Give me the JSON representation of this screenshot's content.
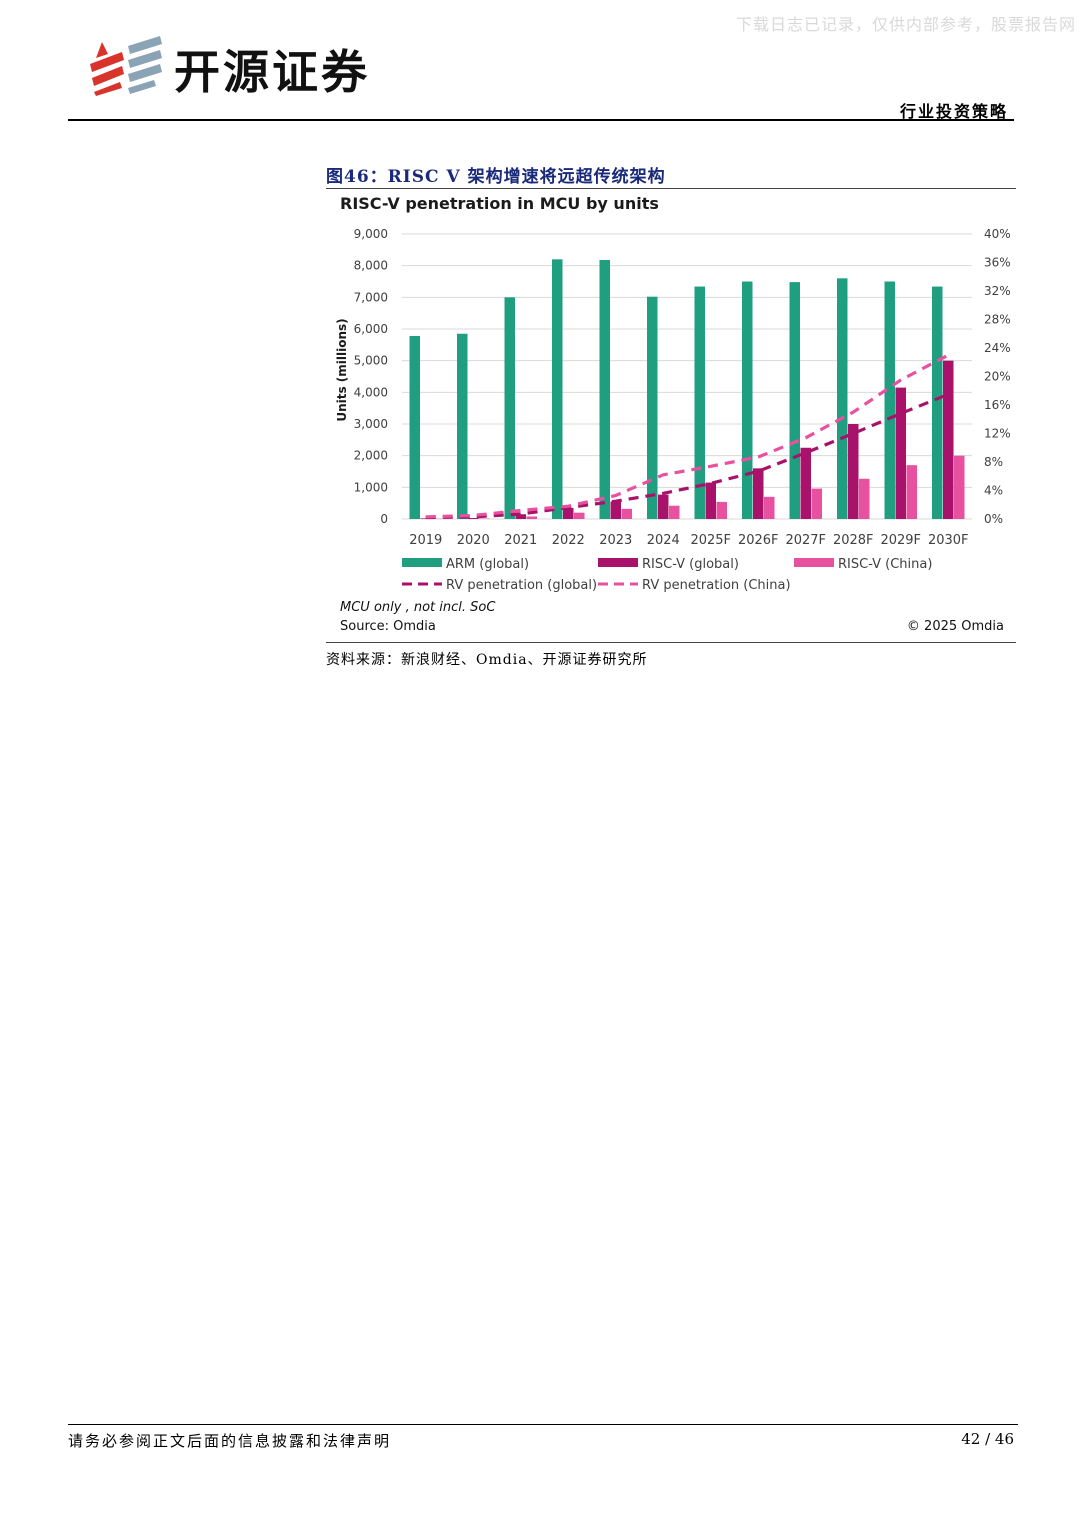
{
  "header": {
    "watermark": "下载日志已记录，仅供内部参考，股票报告网",
    "brand": "开源证券",
    "section": "行业投资策略"
  },
  "figure": {
    "label": "图46：RISC V 架构增速将远超传统架构",
    "source": "资料来源：新浪财经、Omdia、开源证券研究所",
    "notes": {
      "scope": "MCU only , not incl. SoC",
      "source": "Source: Omdia",
      "copyright": "© 2025 Omdia"
    }
  },
  "chart_data": {
    "type": "bar",
    "title": "RISC-V penetration in MCU by units",
    "xlabel": "",
    "ylabel": "Units (millions)",
    "categories": [
      "2019",
      "2020",
      "2021",
      "2022",
      "2023",
      "2024",
      "2025F",
      "2026F",
      "2027F",
      "2028F",
      "2029F",
      "2030F"
    ],
    "ylim": [
      0,
      9000
    ],
    "y_ticks": [
      "9,000",
      "8,000",
      "7,000",
      "6,000",
      "5,000",
      "4,000",
      "3,000",
      "2,000",
      "1,000",
      "0"
    ],
    "y2lim": [
      0,
      40
    ],
    "y2_ticks": [
      "40%",
      "36%",
      "32%",
      "28%",
      "24%",
      "20%",
      "16%",
      "12%",
      "8%",
      "4%",
      "0%"
    ],
    "grid": true,
    "legend_position": "bottom",
    "series": [
      {
        "name": "ARM (global)",
        "kind": "bar",
        "color": "#1f9e80",
        "values": [
          5780,
          5850,
          7000,
          8200,
          8180,
          7020,
          7340,
          7500,
          7480,
          7600,
          7500,
          7340
        ]
      },
      {
        "name": "RISC-V (global)",
        "kind": "bar",
        "color": "#a8126a",
        "values": [
          20,
          30,
          150,
          350,
          550,
          770,
          1150,
          1600,
          2250,
          3000,
          4150,
          5000
        ]
      },
      {
        "name": "RISC-V (China)",
        "kind": "bar",
        "color": "#e8519f",
        "values": [
          10,
          15,
          80,
          200,
          320,
          420,
          540,
          700,
          960,
          1270,
          1700,
          2000
        ]
      },
      {
        "name": "RV penetration (global)",
        "kind": "line",
        "axis": "right",
        "color": "#a8126a",
        "values": [
          0.2,
          0.3,
          0.7,
          1.6,
          2.5,
          3.6,
          5.0,
          6.7,
          9.3,
          12.0,
          14.8,
          17.5
        ]
      },
      {
        "name": "RV penetration (China)",
        "kind": "line",
        "axis": "right",
        "color": "#e8519f",
        "values": [
          0.3,
          0.5,
          1.2,
          1.8,
          3.3,
          6.2,
          7.4,
          8.7,
          11.4,
          15.0,
          19.5,
          23.0
        ]
      }
    ]
  },
  "footer": {
    "disclaimer": "请务必参阅正文后面的信息披露和法律声明",
    "page": "42 / 46"
  }
}
